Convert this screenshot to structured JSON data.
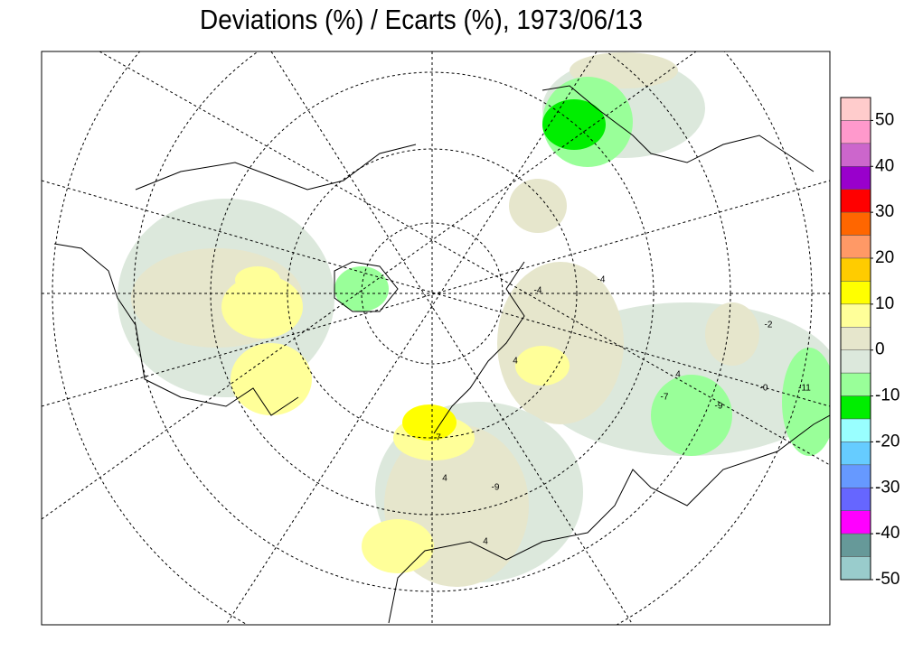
{
  "title": "Deviations (%) / Ecarts (%), 1973/06/13",
  "colorbar": {
    "colors": [
      "#ffcccc",
      "#ff99cc",
      "#cc66cc",
      "#9900cc",
      "#ff0000",
      "#ff6600",
      "#ff9966",
      "#ffcc00",
      "#ffff00",
      "#ffff99",
      "#e6e6cc",
      "#dce8dc",
      "#99ff99",
      "#00ee00",
      "#99ffff",
      "#66ccff",
      "#6699ff",
      "#6666ff",
      "#ff00ff",
      "#669999",
      "#99cccc"
    ],
    "clim": [
      -50,
      55
    ],
    "ticks": [
      50,
      40,
      30,
      20,
      10,
      0,
      -10,
      -20,
      -30,
      -40,
      -50
    ]
  },
  "station_labels": [
    "-4",
    "-7",
    "4",
    "-9",
    "-0",
    "-11",
    "-2",
    "4",
    "-9",
    "4",
    "-4",
    "4",
    "7"
  ]
}
